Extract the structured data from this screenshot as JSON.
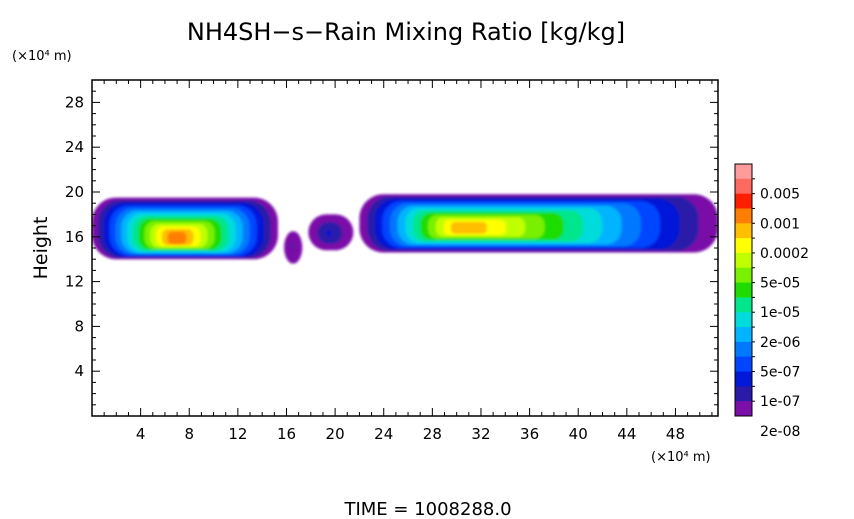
{
  "chart_data": {
    "type": "heatmap",
    "title": "NH4SH−s−Rain Mixing Ratio [kg/kg]",
    "xlabel": "",
    "ylabel": "Height",
    "x_unit": "(×10⁴ m)",
    "y_unit": "(×10⁴ m)",
    "xlim": [
      0,
      51.5
    ],
    "ylim": [
      0,
      30
    ],
    "x_ticks": [
      "4",
      "8",
      "12",
      "16",
      "20",
      "24",
      "28",
      "32",
      "36",
      "40",
      "44",
      "48"
    ],
    "y_ticks": [
      "4",
      "8",
      "12",
      "16",
      "20",
      "24",
      "28"
    ],
    "colorbar": {
      "labels": [
        "0.005",
        "0.001",
        "0.0002",
        "5e-05",
        "1e-05",
        "2e-06",
        "5e-07",
        "1e-07",
        "2e-08"
      ],
      "colors": [
        "#ff9b9b",
        "#ff6a60",
        "#ff1e00",
        "#ff7d00",
        "#ffbe00",
        "#ffff00",
        "#c0ff00",
        "#78f000",
        "#1fdc00",
        "#00e68c",
        "#00dcdc",
        "#00b4ff",
        "#0078ff",
        "#0045ff",
        "#0018d8",
        "#2a1aa8",
        "#7a10a8"
      ]
    },
    "clouds": [
      {
        "x0": 0.0,
        "x1": 15.3,
        "ytop": 19.5,
        "ybot": 14.0,
        "peak_x": 7.0,
        "peak_y": 15.9,
        "max_level": 13
      },
      {
        "x0": 15.8,
        "x1": 17.3,
        "ytop": 16.5,
        "ybot": 13.6,
        "peak_x": 16.5,
        "peak_y": 15.2,
        "max_level": 1
      },
      {
        "x0": 17.8,
        "x1": 21.5,
        "ytop": 18.0,
        "ybot": 14.8,
        "peak_x": 19.5,
        "peak_y": 16.3,
        "max_level": 2
      },
      {
        "x0": 22.0,
        "x1": 51.5,
        "ytop": 19.8,
        "ybot": 14.6,
        "peak_x": 31.0,
        "peak_y": 16.8,
        "max_level": 12
      }
    ],
    "time_label": "TIME  =  1008288.0"
  }
}
